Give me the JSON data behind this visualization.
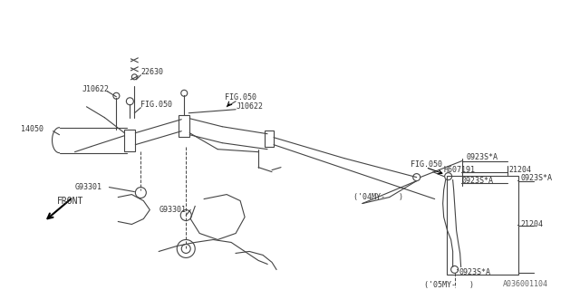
{
  "background_color": "#ffffff",
  "line_color": "#444444",
  "text_color": "#333333",
  "part_number": "A036001104",
  "labels": {
    "J10622_1": "J10622",
    "22630": "22630",
    "FIG050_1": "FIG.050",
    "14050": "14050",
    "G93301_1": "G93301",
    "G93301_2": "G93301",
    "FIG050_2": "FIG.050",
    "J10622_2": "J10622",
    "0923SA_1": "0923S*A",
    "H607191": "H607191",
    "21204_1": "21204",
    "0923SA_2": "0923S*A",
    "04MY": "('04MY-   )",
    "FIG050_3": "FIG.050",
    "0923SA_3": "0923S*A",
    "21204_2": "21204",
    "0923SA_4": "0923S*A",
    "05MY": "('05MY-   )"
  }
}
